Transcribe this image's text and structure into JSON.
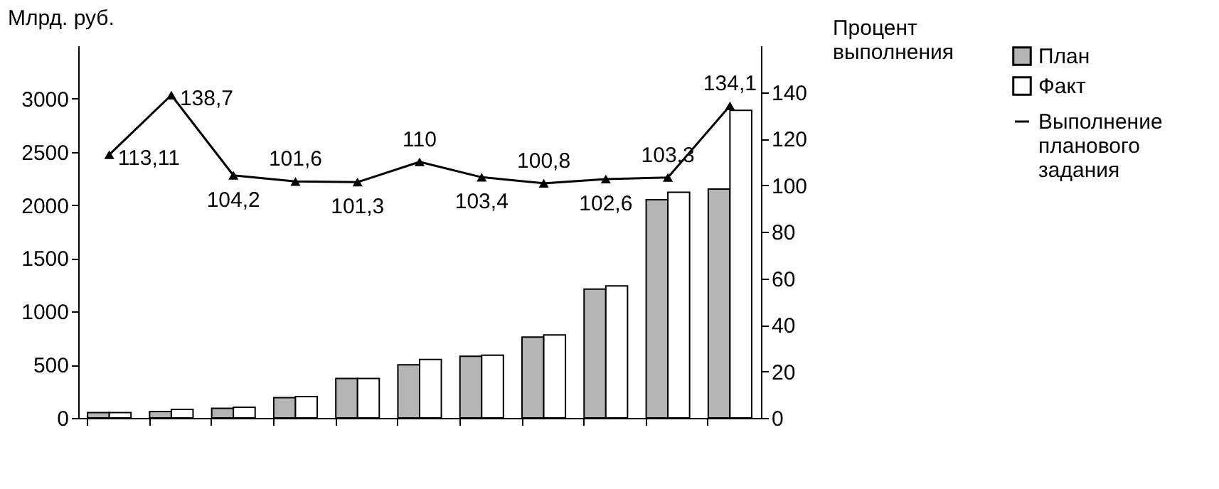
{
  "chart_data": {
    "type": "bar",
    "ylabel": "Млрд. руб.",
    "y2label": "Процент выполнения",
    "categories": [
      null,
      null,
      null,
      null,
      null,
      null,
      null,
      null,
      null,
      null,
      null
    ],
    "series": [
      {
        "name": "План",
        "color": "#b4b4b4",
        "values": [
          50,
          60,
          90,
          190,
          370,
          500,
          580,
          760,
          1210,
          2050,
          2150
        ]
      },
      {
        "name": "Факт",
        "color": "#ffffff",
        "values": [
          50,
          80,
          100,
          200,
          370,
          550,
          590,
          780,
          1240,
          2120,
          2890
        ]
      },
      {
        "name": "Выполнение планового задания",
        "type": "line",
        "axis": "y2",
        "color": "#000000",
        "marker": "triangle",
        "line_style": "solid",
        "values": [
          113.11,
          138.7,
          104.2,
          101.6,
          101.3,
          110,
          103.4,
          100.8,
          102.6,
          103.3,
          134.1
        ],
        "value_labels": [
          "113,11",
          "138,7",
          "104,2",
          "101,6",
          "101,3",
          "110",
          "103,4",
          "100,8",
          "102,6",
          "103,3",
          "134,1"
        ]
      }
    ],
    "ylim": [
      0,
      3500
    ],
    "yticks": [
      0,
      500,
      1000,
      1500,
      2000,
      2500,
      3000
    ],
    "y2lim": [
      0,
      160
    ],
    "y2ticks": [
      0,
      20,
      40,
      60,
      80,
      100,
      120,
      140
    ],
    "grid": false,
    "legend": "right"
  }
}
